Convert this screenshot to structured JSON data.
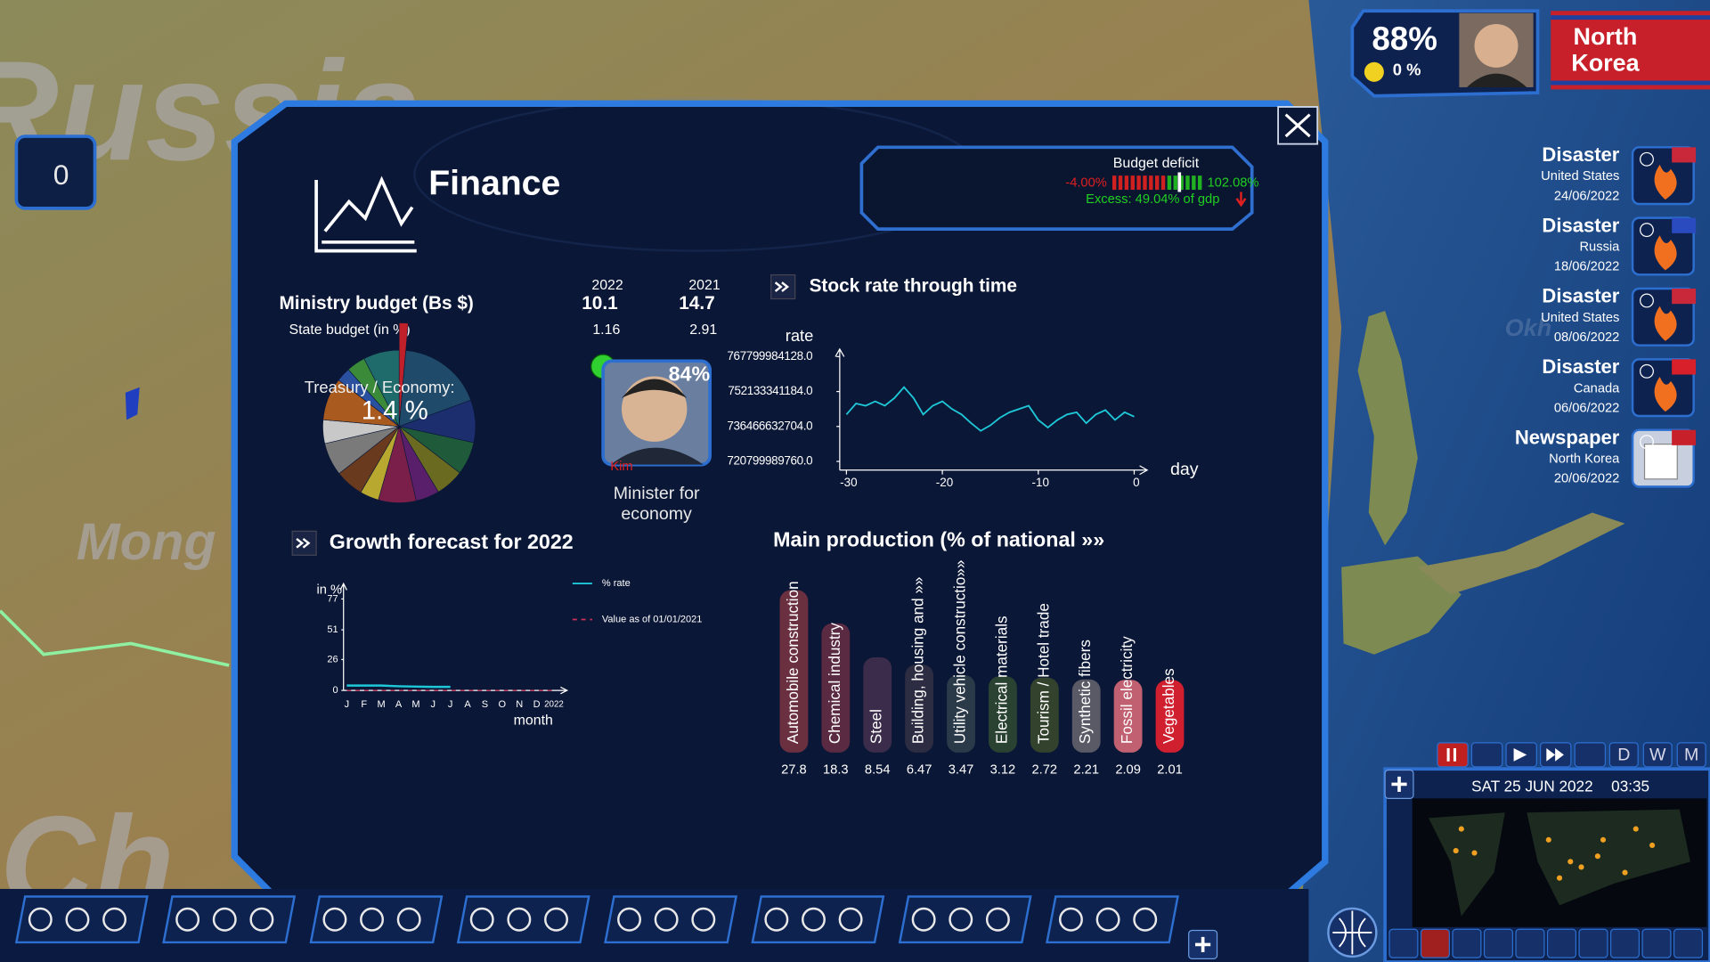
{
  "map_labels": [
    "Russia",
    "Mong",
    "Ch",
    "Okh"
  ],
  "left_counter": "0",
  "header": {
    "approval": "88%",
    "mood": "0 %",
    "country": [
      "North",
      "Korea"
    ]
  },
  "window": {
    "title": "Finance"
  },
  "budget_deficit": {
    "label": "Budget deficit",
    "min": "-4.00%",
    "max": "102.08%",
    "excess": "Excess: 49.04% of gdp"
  },
  "ministry": {
    "title": "Ministry budget (Bs $)",
    "years": [
      "2022",
      "2021"
    ],
    "budget": [
      "10.1",
      "14.7"
    ],
    "state_budget_label": "State budget (in %)",
    "state_budget": [
      "1.16",
      "2.91"
    ]
  },
  "minister": {
    "approval": "84%",
    "name": "Kim",
    "role": [
      "Minister for",
      "economy"
    ]
  },
  "chart_data": [
    {
      "type": "pie",
      "label": "Treasury / Economy:",
      "values": [
        1.4,
        18,
        9,
        7,
        6,
        5,
        8,
        4,
        6,
        7,
        5,
        9,
        3,
        4,
        7.6
      ],
      "value_labels": [
        "1.4 %",
        null,
        null,
        null,
        null,
        null,
        null,
        null,
        null,
        null,
        null,
        null,
        null,
        null,
        null
      ],
      "colors": [
        "#c0202a",
        "#1f4a6a",
        "#1c2e6e",
        "#1f5a3a",
        "#6a6a20",
        "#5a1f6a",
        "#7a1f4a",
        "#b8a830",
        "#6a3a1f",
        "#7a7a7a",
        "#c8c8c8",
        "#a85a1f",
        "#2a50a0",
        "#3a8a3a",
        "#1f6a6a"
      ]
    },
    {
      "type": "line",
      "title": "Stock rate through time",
      "y_label": "rate",
      "x_label": "day",
      "x": [
        -30,
        -29,
        -28,
        -27,
        -26,
        -25,
        -24,
        -23,
        -22,
        -21,
        -20,
        -19,
        -18,
        -17,
        -16,
        -15,
        -14,
        -13,
        -12,
        -11,
        -10,
        -9,
        -8,
        -7,
        -6,
        -5,
        -4,
        -3,
        -2,
        -1,
        0
      ],
      "values": [
        741850000000,
        746750000000,
        745770000000,
        747730000000,
        745770000000,
        749200000000,
        754090000000,
        749200000000,
        741850000000,
        745770000000,
        747730000000,
        744300000000,
        741850000000,
        737940000000,
        734510000000,
        736960000000,
        740380000000,
        742830000000,
        744300000000,
        745770000000,
        739400000000,
        735980000000,
        739400000000,
        741850000000,
        742830000000,
        737940000000,
        741850000000,
        743810000000,
        739400000000,
        742830000000,
        740870000000
      ],
      "color": "#1ec8d8",
      "xlim": [
        -30.7,
        0
      ],
      "xticks": [
        -30,
        -20,
        -10,
        0
      ],
      "ylim": [
        716900000000,
        771200000000
      ],
      "yticks": [
        {
          "value": 720799989760,
          "label": "720799989760.0"
        },
        {
          "value": 736466632704,
          "label": "736466632704.0"
        },
        {
          "value": 752133341184,
          "label": "752133341184.0"
        },
        {
          "value": 767799984128,
          "label": "767799984128.0"
        }
      ]
    },
    {
      "type": "multiline",
      "title": "Growth forecast for 2022",
      "y_label": "in %",
      "x_label": "month",
      "categories": [
        "J",
        "F",
        "M",
        "A",
        "M",
        "J",
        "J",
        "A",
        "S",
        "O",
        "N",
        "D",
        "2022"
      ],
      "series": [
        {
          "name": "% rate",
          "color": "#1ec8d8",
          "dash": false,
          "values": [
            4.1,
            4.1,
            4.1,
            3.5,
            3.2,
            3.0,
            3.0,
            null,
            null,
            null,
            null,
            null,
            null
          ]
        },
        {
          "name": "Value as of 01/01/2021",
          "color": "#d0305a",
          "dash": true,
          "values": [
            0,
            0,
            0,
            0,
            0,
            0,
            0,
            0,
            0,
            0,
            0,
            0,
            0
          ]
        }
      ],
      "ylim": [
        0,
        90
      ],
      "yticks": [
        0,
        26,
        51,
        77
      ]
    },
    {
      "type": "bar",
      "title": "Main production (% of national »»",
      "categories": [
        "Automobile construction",
        "Chemical industry",
        "Steel",
        "Building, housing and »»",
        "Utility vehicle constructio»»",
        "Electrical materials",
        "Tourism / Hotel trade",
        "Synthetic fibers",
        "Fossil electricity",
        "Vegetables"
      ],
      "values": [
        27.8,
        18.3,
        8.54,
        6.47,
        3.47,
        3.12,
        2.72,
        2.21,
        2.09,
        2.01
      ],
      "colors": [
        "#6a3040",
        "#5a2a42",
        "#3a2c4a",
        "#2c2c42",
        "#2a3a48",
        "#2a4232",
        "#33422c",
        "#5a5a66",
        "#c06070",
        "#d02030"
      ]
    }
  ],
  "events": [
    {
      "type": "Disaster",
      "country": "United States",
      "date": "24/06/2022"
    },
    {
      "type": "Disaster",
      "country": "Russia",
      "date": "18/06/2022"
    },
    {
      "type": "Disaster",
      "country": "United States",
      "date": "08/06/2022"
    },
    {
      "type": "Disaster",
      "country": "Canada",
      "date": "06/06/2022"
    },
    {
      "type": "Newspaper",
      "country": "North Korea",
      "date": "20/06/2022"
    }
  ],
  "clock": {
    "date": "SAT 25 JUN 2022",
    "time": "03:35",
    "speeds": [
      "D",
      "W",
      "M"
    ]
  }
}
